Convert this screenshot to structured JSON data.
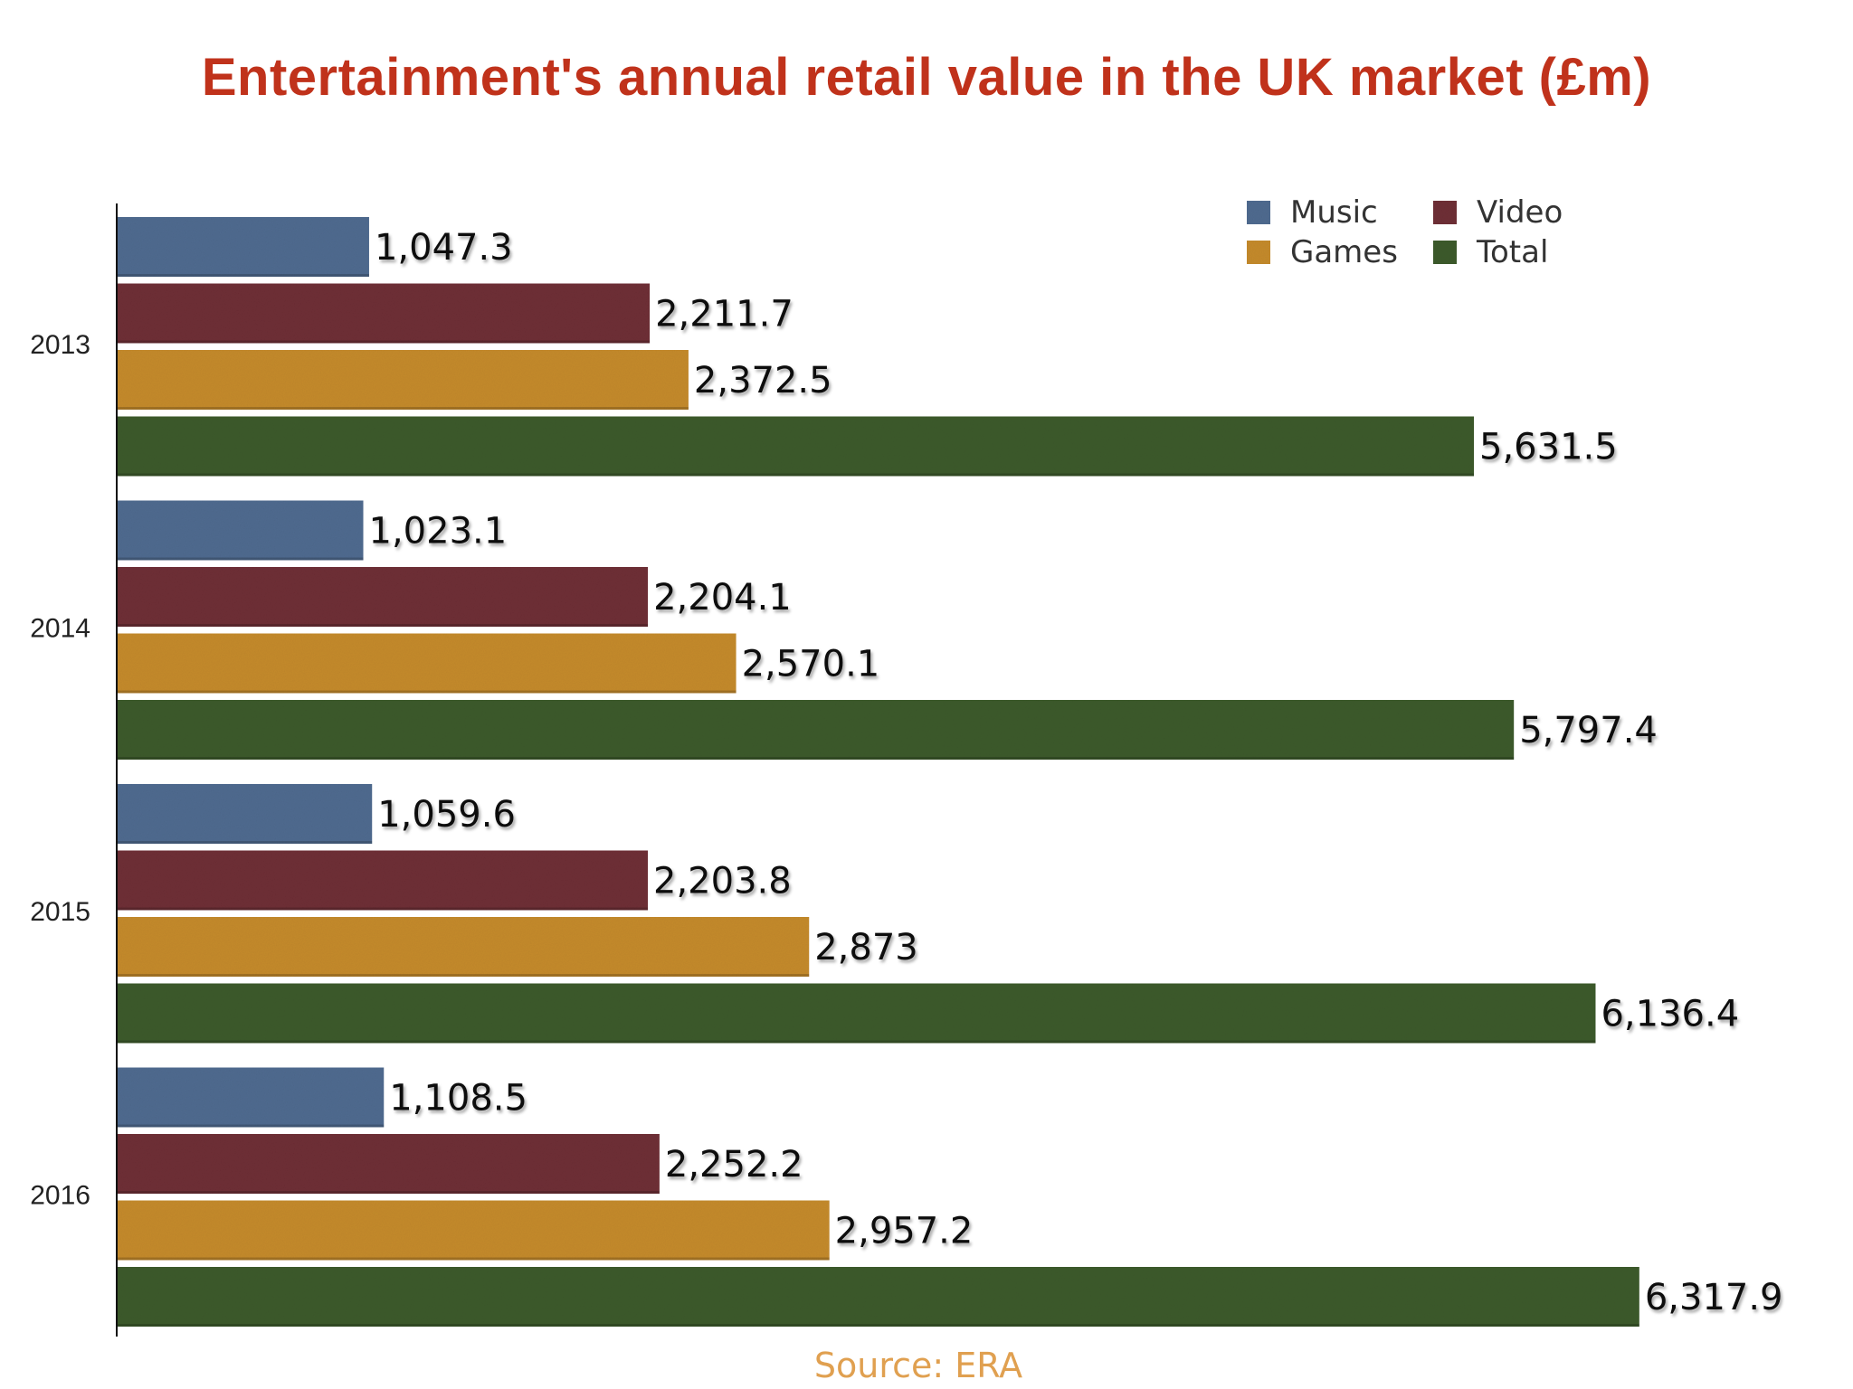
{
  "chart_data": {
    "type": "bar",
    "orientation": "horizontal",
    "title": "Entertainment's annual retail value in the UK market (£m)",
    "categories": [
      "2013",
      "2014",
      "2015",
      "2016"
    ],
    "series": [
      {
        "name": "Music",
        "color": "#4f6a8f",
        "values": [
          1047.3,
          1023.1,
          1059.6,
          1108.5
        ],
        "labels": [
          "1,047.3",
          "1,023.1",
          "1,059.6",
          "1,108.5"
        ]
      },
      {
        "name": "Video",
        "color": "#6e2e35",
        "values": [
          2211.7,
          2204.1,
          2203.8,
          2252.2
        ],
        "labels": [
          "2,211.7",
          "2,204.1",
          "2,203.8",
          "2,252.2"
        ]
      },
      {
        "name": "Games",
        "color": "#c48a2c",
        "values": [
          2372.5,
          2570.1,
          2873,
          2957.2
        ],
        "labels": [
          "2,372.5",
          "2,570.1",
          "2,873",
          "2,957.2"
        ]
      },
      {
        "name": "Total",
        "color": "#3c5a2c",
        "values": [
          5631.5,
          5797.4,
          6136.4,
          6317.9
        ],
        "labels": [
          "5,631.5",
          "5,797.4",
          "6,136.4",
          "6,317.9"
        ]
      }
    ],
    "xlim": [
      0,
      6500
    ],
    "grid": false,
    "legend_position": "top-right",
    "source": "Source: ERA"
  },
  "colors": {
    "title": "#c0321b",
    "source": "#e0a050"
  }
}
